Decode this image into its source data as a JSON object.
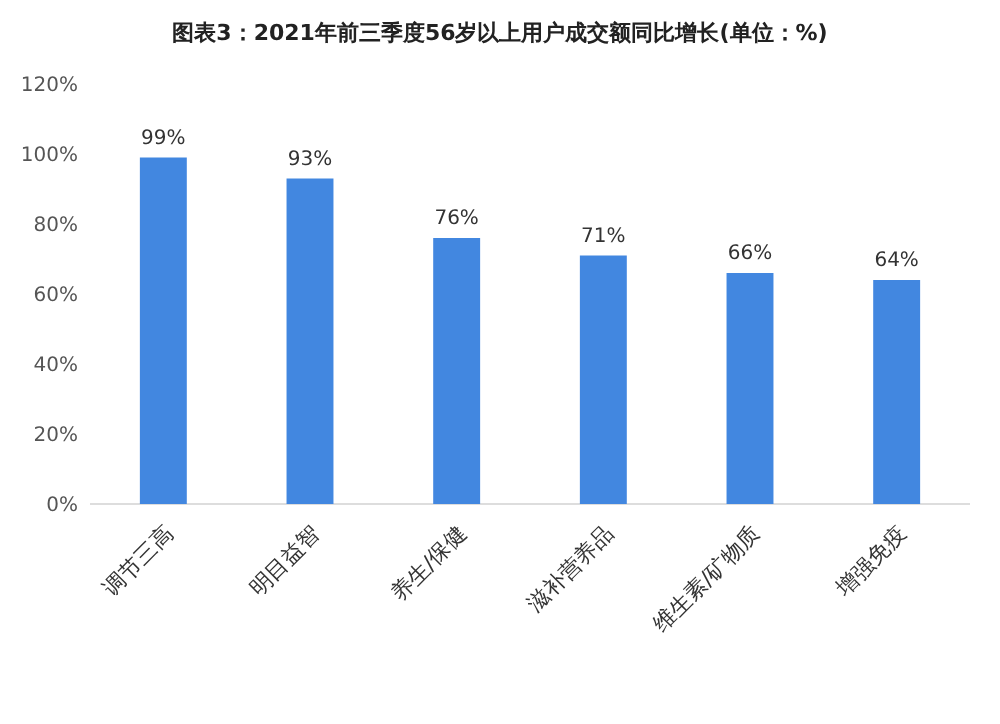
{
  "chart_data": {
    "type": "bar",
    "title": "图表3：2021年前三季度56岁以上用户成交额同比增长(单位：%)",
    "categories": [
      "调节三高",
      "明目益智",
      "养生/保健",
      "滋补营养品",
      "维生素/矿物质",
      "增强免疫"
    ],
    "values": [
      99,
      93,
      76,
      71,
      66,
      64
    ],
    "value_labels": [
      "99%",
      "93%",
      "76%",
      "71%",
      "66%",
      "64%"
    ],
    "color": "#4287e0",
    "ylim": [
      0,
      120
    ],
    "yticks": [
      {
        "value": 0,
        "label": "0%"
      },
      {
        "value": 20,
        "label": "20%"
      },
      {
        "value": 40,
        "label": "40%"
      },
      {
        "value": 60,
        "label": "60%"
      },
      {
        "value": 80,
        "label": "80%"
      },
      {
        "value": 100,
        "label": "100%"
      },
      {
        "value": 120,
        "label": "120%"
      }
    ],
    "grid": false
  }
}
